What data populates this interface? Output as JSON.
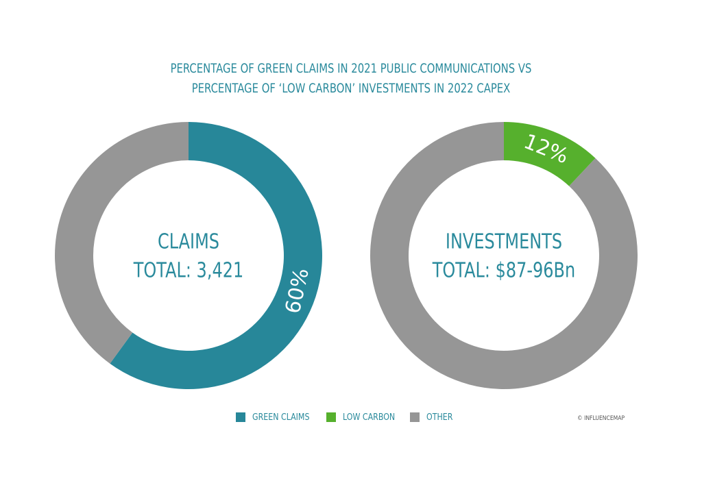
{
  "title": {
    "line1": "PERCENTAGE OF GREEN CLAIMS IN 2021 PUBLIC COMMUNICATIONS VS",
    "line2": "PERCENTAGE OF ‘LOW CARBON’ INVESTMENTS IN 2022 CAPEX"
  },
  "colors": {
    "teal": "#278799",
    "green": "#56b02d",
    "grey": "#969696",
    "text": "#2a8a9c"
  },
  "chart_data": [
    {
      "type": "pie",
      "variant": "donut",
      "center_label": [
        "CLAIMS",
        "TOTAL: 3,421"
      ],
      "slices": [
        {
          "category": "GREEN CLAIMS",
          "value": 60,
          "label": "60%",
          "color": "#278799"
        },
        {
          "category": "OTHER",
          "value": 40,
          "label": "",
          "color": "#969696"
        }
      ]
    },
    {
      "type": "pie",
      "variant": "donut",
      "center_label": [
        "INVESTMENTS",
        "TOTAL: $87-96Bn"
      ],
      "slices": [
        {
          "category": "LOW CARBON",
          "value": 12,
          "label": "12%",
          "color": "#56b02d"
        },
        {
          "category": "OTHER",
          "value": 88,
          "label": "",
          "color": "#969696"
        }
      ]
    }
  ],
  "legend": {
    "placement": "bottom",
    "items": [
      {
        "label": "GREEN CLAIMS",
        "color": "#278799"
      },
      {
        "label": "LOW CARBON",
        "color": "#56b02d"
      },
      {
        "label": "OTHER",
        "color": "#969696"
      }
    ]
  },
  "credit": "© INFLUENCEMAP"
}
